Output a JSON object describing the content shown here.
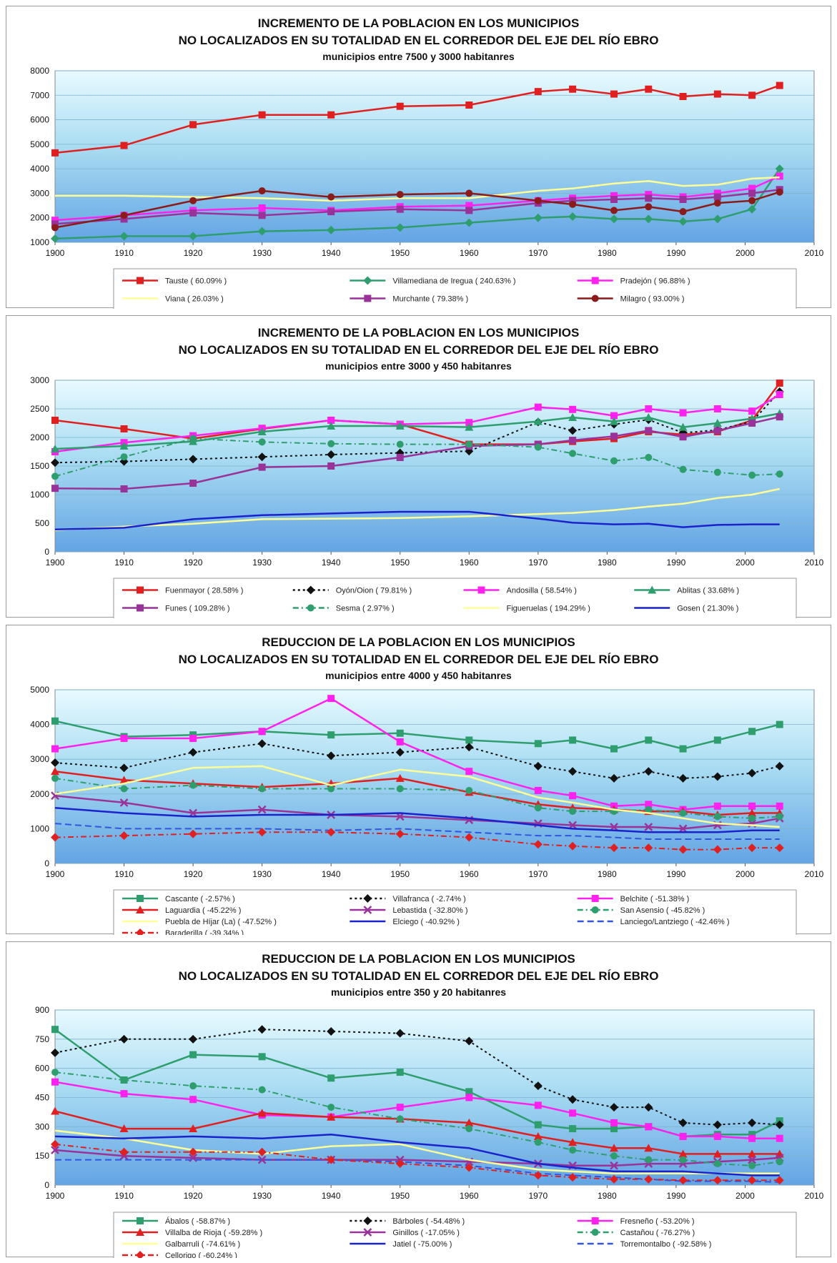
{
  "chart_data": [
    {
      "type": "line",
      "title": "INCREMENTO DE LA POBLACION EN LOS MUNICIPIOS",
      "title2": "NO LOCALIZADOS EN SU TOTALIDAD EN EL CORREDOR DEL EJE DEL RÍO EBRO",
      "subtitle": "municipios entre 7500 y 3000 habitanres",
      "xlim": [
        1900,
        2010
      ],
      "ylim": [
        1000,
        8000
      ],
      "xticks": [
        "1900",
        "1910",
        "1920",
        "1930",
        "1940",
        "1950",
        "1960",
        "1970",
        "1980",
        "1990",
        "2000",
        "2010"
      ],
      "yticks": [
        "1000",
        "2000",
        "3000",
        "4000",
        "5000",
        "6000",
        "7000",
        "8000"
      ],
      "legend": "bottom",
      "x": [
        1900,
        1910,
        1920,
        1930,
        1940,
        1950,
        1960,
        1970,
        1975,
        1981,
        1986,
        1991,
        1996,
        2001,
        2005
      ],
      "series": [
        {
          "name": "Tauste ( 60.09% )",
          "color": "#e02020",
          "dash": "",
          "marker": "square",
          "values": [
            4650,
            4950,
            5800,
            6200,
            6200,
            6550,
            6600,
            7150,
            7250,
            7050,
            7250,
            6950,
            7050,
            7000,
            7400
          ]
        },
        {
          "name": "Villamediana de Iregua ( 240.63% )",
          "color": "#2e9e6e",
          "dash": "",
          "marker": "diamond",
          "values": [
            1150,
            1250,
            1250,
            1450,
            1500,
            1600,
            1800,
            2000,
            2050,
            1950,
            1950,
            1850,
            1950,
            2350,
            4000
          ]
        },
        {
          "name": "Pradejón ( 96.88% )",
          "color": "#ff22ee",
          "dash": "",
          "marker": "square",
          "values": [
            1900,
            2100,
            2300,
            2400,
            2300,
            2450,
            2500,
            2700,
            2800,
            2900,
            2950,
            2850,
            3000,
            3200,
            3700
          ]
        },
        {
          "name": "Viana ( 26.03% )",
          "color": "#ffff99",
          "dash": "",
          "marker": "none",
          "values": [
            2900,
            2900,
            2850,
            2800,
            2700,
            2800,
            2800,
            3100,
            3200,
            3400,
            3500,
            3300,
            3350,
            3600,
            3650
          ]
        },
        {
          "name": "Murchante ( 79.38% )",
          "color": "#993399",
          "dash": "",
          "marker": "square",
          "values": [
            1750,
            1950,
            2200,
            2100,
            2250,
            2350,
            2300,
            2600,
            2700,
            2750,
            2800,
            2750,
            2850,
            3000,
            3150
          ]
        },
        {
          "name": "Milagro ( 93.00% )",
          "color": "#8b1a1a",
          "dash": "",
          "marker": "circle",
          "values": [
            1600,
            2100,
            2700,
            3100,
            2850,
            2950,
            3000,
            2700,
            2550,
            2300,
            2450,
            2250,
            2600,
            2700,
            3050
          ]
        }
      ]
    },
    {
      "type": "line",
      "title": "INCREMENTO DE LA POBLACION EN LOS MUNICIPIOS",
      "title2": "NO LOCALIZADOS EN SU TOTALIDAD EN EL CORREDOR DEL EJE DEL RÍO EBRO",
      "subtitle": "municipios entre 3000 y 450 habitanres",
      "xlim": [
        1900,
        2010
      ],
      "ylim": [
        0,
        3000
      ],
      "xticks": [
        "1900",
        "1910",
        "1920",
        "1930",
        "1940",
        "1950",
        "1960",
        "1970",
        "1980",
        "1990",
        "2000",
        "2010"
      ],
      "yticks": [
        "0",
        "500",
        "1000",
        "1500",
        "2000",
        "2500",
        "3000"
      ],
      "legend": "bottom",
      "x": [
        1900,
        1910,
        1920,
        1930,
        1940,
        1950,
        1960,
        1970,
        1975,
        1981,
        1986,
        1991,
        1996,
        2001,
        2005
      ],
      "series": [
        {
          "name": "Fuenmayor ( 28.58% )",
          "color": "#e02020",
          "dash": "",
          "marker": "square",
          "values": [
            2300,
            2150,
            1980,
            2150,
            2300,
            2230,
            1880,
            1880,
            1930,
            1980,
            2100,
            2050,
            2100,
            2300,
            2950
          ]
        },
        {
          "name": "Oyón/Oion ( 79.81% )",
          "color": "#111111",
          "dash": "3,4",
          "marker": "diamond",
          "values": [
            1560,
            1580,
            1620,
            1660,
            1700,
            1730,
            1760,
            2270,
            2120,
            2230,
            2310,
            2080,
            2130,
            2280,
            2800
          ]
        },
        {
          "name": "Andosilla ( 58.54% )",
          "color": "#ff22ee",
          "dash": "",
          "marker": "square",
          "values": [
            1750,
            1910,
            2030,
            2160,
            2300,
            2230,
            2260,
            2530,
            2490,
            2380,
            2500,
            2430,
            2500,
            2460,
            2750
          ]
        },
        {
          "name": "Ablitas ( 33.68% )",
          "color": "#2e9e6e",
          "dash": "",
          "marker": "triangle",
          "values": [
            1800,
            1850,
            1930,
            2100,
            2200,
            2200,
            2180,
            2280,
            2350,
            2280,
            2350,
            2180,
            2250,
            2330,
            2420
          ]
        },
        {
          "name": "Funes ( 109.28% )",
          "color": "#993399",
          "dash": "",
          "marker": "square",
          "values": [
            1110,
            1100,
            1200,
            1480,
            1500,
            1650,
            1850,
            1880,
            1950,
            2020,
            2120,
            2010,
            2120,
            2250,
            2360
          ]
        },
        {
          "name": "Sesma ( 2.97% )",
          "color": "#2e9e6e",
          "dash": "8,4,2,4",
          "marker": "circle",
          "values": [
            1320,
            1660,
            1980,
            1920,
            1890,
            1880,
            1880,
            1830,
            1720,
            1590,
            1650,
            1440,
            1390,
            1340,
            1360
          ]
        },
        {
          "name": "Figueruelas ( 194.29% )",
          "color": "#ffff99",
          "dash": "",
          "marker": "none",
          "values": [
            380,
            440,
            490,
            570,
            580,
            590,
            620,
            660,
            680,
            730,
            790,
            840,
            940,
            1000,
            1100
          ]
        },
        {
          "name": "Gosen ( 21.30% )",
          "color": "#1a22cc",
          "dash": "",
          "marker": "none",
          "values": [
            390,
            420,
            570,
            640,
            670,
            700,
            700,
            580,
            510,
            480,
            490,
            430,
            470,
            480,
            480
          ]
        }
      ]
    },
    {
      "type": "line",
      "title": "REDUCCION DE LA POBLACION EN LOS MUNICIPIOS",
      "title2": "NO LOCALIZADOS EN SU TOTALIDAD EN EL CORREDOR DEL EJE DEL RÍO EBRO",
      "subtitle": "municipios entre 4000 y 450 habitanres",
      "xlim": [
        1900,
        2010
      ],
      "ylim": [
        0,
        5000
      ],
      "xticks": [
        "1900",
        "1910",
        "1920",
        "1930",
        "1940",
        "1950",
        "1960",
        "1970",
        "1980",
        "1990",
        "2000",
        "2010"
      ],
      "yticks": [
        "0",
        "1000",
        "2000",
        "3000",
        "4000",
        "5000"
      ],
      "legend": "bottom",
      "x": [
        1900,
        1910,
        1920,
        1930,
        1940,
        1950,
        1960,
        1970,
        1975,
        1981,
        1986,
        1991,
        1996,
        2001,
        2005
      ],
      "series": [
        {
          "name": "Cascante ( -2.57% )",
          "color": "#2e9e6e",
          "dash": "",
          "marker": "square",
          "values": [
            4100,
            3650,
            3700,
            3800,
            3700,
            3750,
            3550,
            3450,
            3550,
            3300,
            3550,
            3300,
            3550,
            3800,
            4000
          ]
        },
        {
          "name": "Villafranca ( -2.74% )",
          "color": "#111111",
          "dash": "3,4",
          "marker": "diamond",
          "values": [
            2900,
            2750,
            3200,
            3450,
            3100,
            3200,
            3350,
            2800,
            2650,
            2450,
            2650,
            2450,
            2500,
            2600,
            2800
          ]
        },
        {
          "name": "Belchite ( -51.38% )",
          "color": "#ff22ee",
          "dash": "",
          "marker": "square",
          "values": [
            3300,
            3600,
            3600,
            3800,
            4750,
            3500,
            2650,
            2100,
            1950,
            1650,
            1700,
            1550,
            1650,
            1650,
            1650
          ]
        },
        {
          "name": "Laguardia ( -45.22% )",
          "color": "#e02020",
          "dash": "",
          "marker": "triangle",
          "values": [
            2650,
            2400,
            2300,
            2200,
            2300,
            2450,
            2050,
            1700,
            1600,
            1550,
            1500,
            1500,
            1400,
            1450,
            1450
          ]
        },
        {
          "name": "Lebastida ( -32.80% )",
          "color": "#993399",
          "dash": "",
          "marker": "cross",
          "values": [
            1950,
            1750,
            1450,
            1550,
            1400,
            1350,
            1250,
            1150,
            1100,
            1050,
            1050,
            1000,
            1100,
            1150,
            1300
          ]
        },
        {
          "name": "San Asensio ( -45.82% )",
          "color": "#2e9e6e",
          "dash": "8,4,2,4",
          "marker": "circle",
          "values": [
            2450,
            2150,
            2250,
            2150,
            2150,
            2150,
            2100,
            1600,
            1500,
            1500,
            1550,
            1450,
            1350,
            1300,
            1350
          ]
        },
        {
          "name": "Puebla de Híjar (La) ( -47.52% )",
          "color": "#ffff99",
          "dash": "",
          "marker": "none",
          "values": [
            2000,
            2300,
            2750,
            2800,
            2250,
            2700,
            2500,
            1900,
            1750,
            1550,
            1450,
            1300,
            1150,
            1100,
            1050
          ]
        },
        {
          "name": "Elciego ( -40.92% )",
          "color": "#1a22cc",
          "dash": "",
          "marker": "none",
          "values": [
            1600,
            1450,
            1350,
            1400,
            1400,
            1450,
            1300,
            1100,
            1000,
            950,
            900,
            900,
            900,
            950,
            950
          ]
        },
        {
          "name": "Lanciego/Lantziego ( -42.46% )",
          "color": "#3355dd",
          "dash": "9,5",
          "marker": "none",
          "values": [
            1150,
            1000,
            1000,
            1000,
            950,
            1000,
            900,
            800,
            800,
            750,
            700,
            700,
            700,
            700,
            700
          ]
        },
        {
          "name": "Baraderilla ( -39.34% )",
          "color": "#e02020",
          "dash": "8,4,2,4",
          "marker": "diamond",
          "values": [
            750,
            800,
            850,
            900,
            900,
            850,
            750,
            550,
            500,
            450,
            450,
            400,
            400,
            450,
            450
          ]
        }
      ]
    },
    {
      "type": "line",
      "title": "REDUCCION DE LA POBLACION EN LOS MUNICIPIOS",
      "title2": "NO LOCALIZADOS EN SU TOTALIDAD EN EL CORREDOR DEL EJE DEL RÍO EBRO",
      "subtitle": "municipios entre 350 y 20 habitanres",
      "xlim": [
        1900,
        2010
      ],
      "ylim": [
        0,
        900
      ],
      "xticks": [
        "1900",
        "1910",
        "1920",
        "1930",
        "1940",
        "1950",
        "1960",
        "1970",
        "1980",
        "1990",
        "2000",
        "2010"
      ],
      "yticks": [
        "0",
        "150",
        "300",
        "450",
        "600",
        "750",
        "900"
      ],
      "legend": "bottom",
      "x": [
        1900,
        1910,
        1920,
        1930,
        1940,
        1950,
        1960,
        1970,
        1975,
        1981,
        1986,
        1991,
        1996,
        2001,
        2005
      ],
      "series": [
        {
          "name": "Ábalos ( -58.87% )",
          "color": "#2e9e6e",
          "dash": "",
          "marker": "square",
          "values": [
            800,
            540,
            670,
            660,
            550,
            580,
            480,
            310,
            290,
            290,
            300,
            250,
            260,
            260,
            330
          ]
        },
        {
          "name": "Bárboles ( -54.48% )",
          "color": "#111111",
          "dash": "3,4",
          "marker": "diamond",
          "values": [
            680,
            750,
            750,
            800,
            790,
            780,
            740,
            510,
            440,
            400,
            400,
            320,
            310,
            320,
            310
          ]
        },
        {
          "name": "Fresneño ( -53.20% )",
          "color": "#ff22ee",
          "dash": "",
          "marker": "square",
          "values": [
            530,
            470,
            440,
            360,
            350,
            400,
            450,
            410,
            370,
            320,
            300,
            250,
            250,
            240,
            240
          ]
        },
        {
          "name": "Villalba de Rioja ( -59.28% )",
          "color": "#e02020",
          "dash": "",
          "marker": "triangle",
          "values": [
            380,
            290,
            290,
            370,
            350,
            340,
            320,
            250,
            220,
            190,
            190,
            160,
            160,
            160,
            160
          ]
        },
        {
          "name": "Ginillos ( -17.05% )",
          "color": "#993399",
          "dash": "",
          "marker": "cross",
          "values": [
            180,
            150,
            140,
            130,
            130,
            130,
            120,
            110,
            100,
            100,
            110,
            110,
            120,
            130,
            140
          ]
        },
        {
          "name": "Castañou ( -76.27% )",
          "color": "#2e9e6e",
          "dash": "8,4,2,4",
          "marker": "circle",
          "values": [
            580,
            540,
            510,
            490,
            400,
            340,
            290,
            220,
            180,
            150,
            130,
            130,
            110,
            100,
            120
          ]
        },
        {
          "name": "Galbarruli ( -74.61% )",
          "color": "#ffff99",
          "dash": "",
          "marker": "none",
          "values": [
            280,
            240,
            180,
            160,
            200,
            210,
            130,
            80,
            70,
            60,
            60,
            60,
            60,
            60,
            60
          ]
        },
        {
          "name": "Jatiel ( -75.00% )",
          "color": "#1a22cc",
          "dash": "",
          "marker": "none",
          "values": [
            250,
            240,
            250,
            240,
            260,
            220,
            190,
            110,
            90,
            70,
            70,
            70,
            60,
            50,
            50
          ]
        },
        {
          "name": "Torremontalbo ( -92.58% )",
          "color": "#3355dd",
          "dash": "9,5",
          "marker": "none",
          "values": [
            130,
            130,
            130,
            130,
            130,
            120,
            100,
            60,
            50,
            40,
            30,
            20,
            20,
            20,
            15
          ]
        },
        {
          "name": "Cellorigo ( -60.24% )",
          "color": "#e02020",
          "dash": "8,4,2,4",
          "marker": "diamond",
          "values": [
            210,
            170,
            170,
            170,
            130,
            110,
            90,
            50,
            40,
            30,
            30,
            25,
            25,
            25,
            25
          ]
        }
      ]
    }
  ]
}
